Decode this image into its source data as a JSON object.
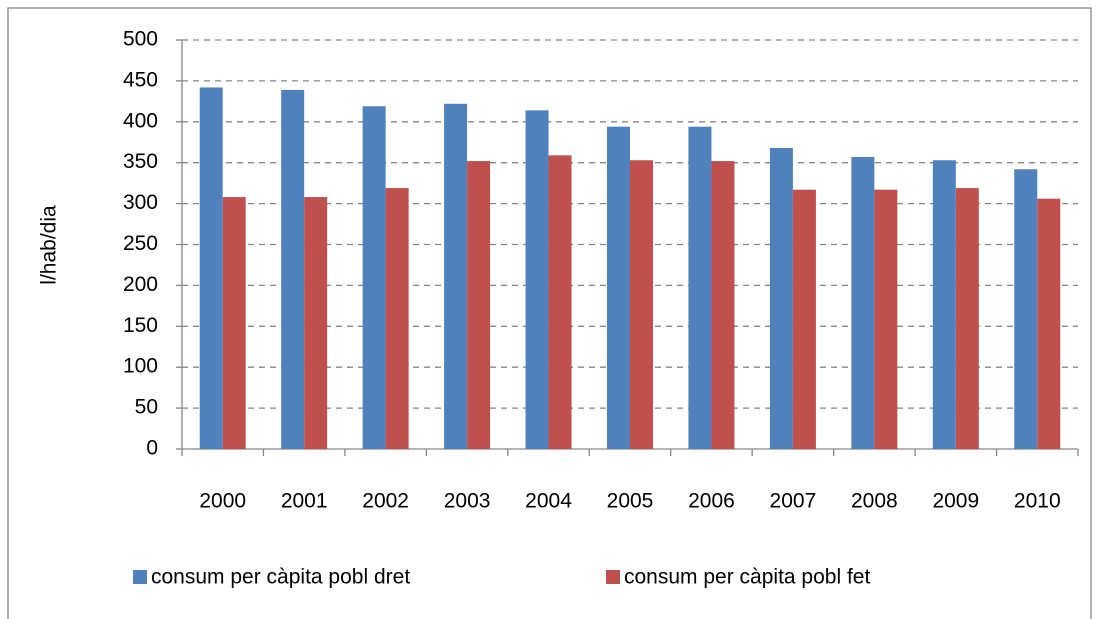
{
  "chart_data": {
    "type": "bar",
    "y_label": "l/hab/dia",
    "categories": [
      "2000",
      "2001",
      "2002",
      "2003",
      "2004",
      "2005",
      "2006",
      "2007",
      "2008",
      "2009",
      "2010"
    ],
    "series": [
      {
        "name": "consum per càpita pobl dret",
        "color": "#4f81bd",
        "values": [
          442,
          439,
          419,
          422,
          414,
          394,
          394,
          368,
          357,
          353,
          342
        ]
      },
      {
        "name": "consum per càpita pobl fet",
        "color": "#c0504d",
        "values": [
          308,
          308,
          319,
          352,
          359,
          353,
          352,
          317,
          317,
          319,
          306
        ]
      }
    ],
    "ylim": [
      0,
      500
    ],
    "yticks": [
      0,
      50,
      100,
      150,
      200,
      250,
      300,
      350,
      400,
      450,
      500
    ],
    "grid": true,
    "legend": "bottom"
  }
}
